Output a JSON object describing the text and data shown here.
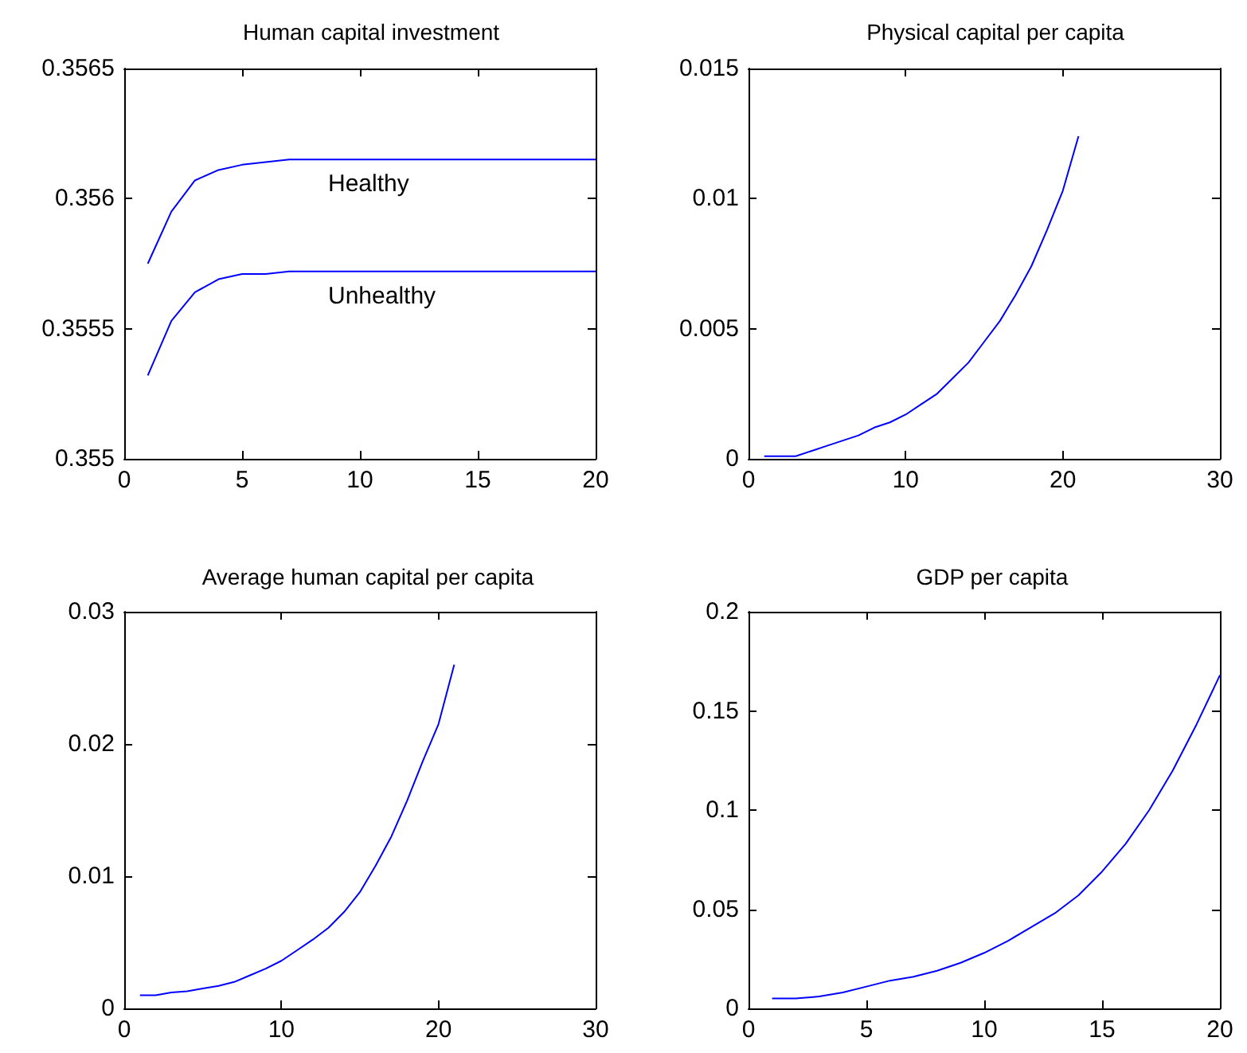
{
  "chart_data": [
    {
      "type": "line",
      "title": "Human capital investment",
      "xlim": [
        0,
        20
      ],
      "xticks": [
        0,
        5,
        10,
        15,
        20
      ],
      "ylim": [
        0.355,
        0.3565
      ],
      "yticks": [
        0.355,
        0.3555,
        0.356,
        0.3565
      ],
      "grid": false,
      "legend": false,
      "marker": "none",
      "series": [
        {
          "name": "Healthy",
          "color": "#0000ff",
          "x": [
            1,
            2,
            3,
            4,
            5,
            6,
            7,
            8,
            9,
            10,
            11,
            12,
            13,
            14,
            15,
            16,
            17,
            18,
            19,
            20
          ],
          "values": [
            0.35575,
            0.35595,
            0.35607,
            0.35611,
            0.35613,
            0.35614,
            0.35615,
            0.35615,
            0.35615,
            0.35615,
            0.35615,
            0.35615,
            0.35615,
            0.35615,
            0.35615,
            0.35615,
            0.35615,
            0.35615,
            0.35615,
            0.35615
          ]
        },
        {
          "name": "Unhealthy",
          "color": "#0000ff",
          "x": [
            1,
            2,
            3,
            4,
            5,
            6,
            7,
            8,
            9,
            10,
            11,
            12,
            13,
            14,
            15,
            16,
            17,
            18,
            19,
            20
          ],
          "values": [
            0.35532,
            0.35553,
            0.35564,
            0.35569,
            0.35571,
            0.35571,
            0.35572,
            0.35572,
            0.35572,
            0.35572,
            0.35572,
            0.35572,
            0.35572,
            0.35572,
            0.35572,
            0.35572,
            0.35572,
            0.35572,
            0.35572,
            0.35572
          ]
        }
      ]
    },
    {
      "type": "line",
      "title": "Physical capital per capita",
      "xlim": [
        0,
        30
      ],
      "xticks": [
        0,
        10,
        20,
        30
      ],
      "ylim": [
        0,
        0.015
      ],
      "yticks": [
        0,
        0.005,
        0.01,
        0.015
      ],
      "grid": false,
      "legend": false,
      "marker": "none",
      "series": [
        {
          "color": "#0000ff",
          "x": [
            1,
            2,
            3,
            4,
            5,
            6,
            7,
            8,
            9,
            10,
            11,
            12,
            13,
            14,
            15,
            16,
            17,
            18,
            19,
            20,
            21
          ],
          "values": [
            0.0001,
            0.0001,
            0.0001,
            0.0003,
            0.0005,
            0.0007,
            0.0009,
            0.0012,
            0.0014,
            0.0017,
            0.0021,
            0.0025,
            0.0031,
            0.0037,
            0.0045,
            0.0053,
            0.0063,
            0.0074,
            0.0088,
            0.0103,
            0.0124
          ]
        }
      ]
    },
    {
      "type": "line",
      "title": "Average human capital per capita",
      "xlim": [
        0,
        30
      ],
      "xticks": [
        0,
        10,
        20,
        30
      ],
      "ylim": [
        0,
        0.03
      ],
      "yticks": [
        0,
        0.01,
        0.02,
        0.03
      ],
      "grid": false,
      "legend": false,
      "marker": "none",
      "series": [
        {
          "color": "#0000ff",
          "x": [
            1,
            2,
            3,
            4,
            5,
            6,
            7,
            8,
            9,
            10,
            11,
            12,
            13,
            14,
            15,
            16,
            17,
            18,
            19,
            20,
            21
          ],
          "values": [
            0.001,
            0.001,
            0.0012,
            0.0013,
            0.0015,
            0.0017,
            0.002,
            0.0025,
            0.003,
            0.0036,
            0.0044,
            0.0052,
            0.0061,
            0.0073,
            0.0088,
            0.0108,
            0.013,
            0.0157,
            0.0187,
            0.0215,
            0.026
          ]
        }
      ]
    },
    {
      "type": "line",
      "title": "GDP per capita",
      "xlim": [
        0,
        20
      ],
      "xticks": [
        0,
        5,
        10,
        15,
        20
      ],
      "ylim": [
        0,
        0.2
      ],
      "yticks": [
        0,
        0.05,
        0.1,
        0.15,
        0.2
      ],
      "grid": false,
      "legend": false,
      "marker": "none",
      "series": [
        {
          "color": "#0000ff",
          "x": [
            1,
            2,
            3,
            4,
            5,
            6,
            7,
            8,
            9,
            10,
            11,
            12,
            13,
            14,
            15,
            16,
            17,
            18,
            19,
            20
          ],
          "values": [
            0.005,
            0.005,
            0.006,
            0.008,
            0.011,
            0.014,
            0.016,
            0.019,
            0.023,
            0.028,
            0.034,
            0.041,
            0.048,
            0.057,
            0.069,
            0.083,
            0.1,
            0.12,
            0.143,
            0.168
          ]
        }
      ]
    }
  ]
}
